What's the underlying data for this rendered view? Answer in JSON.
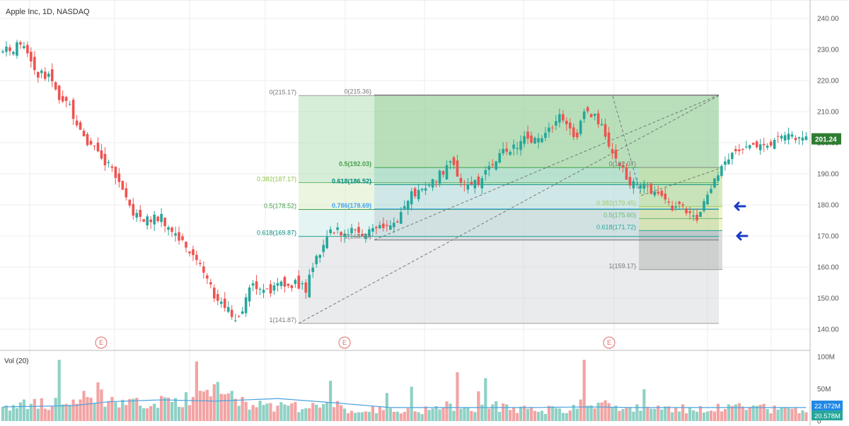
{
  "chart_title": "Apple Inc, 1D, NASDAQ",
  "volume_label": "Vol (20)",
  "colors": {
    "up": "#26a69a",
    "down": "#ef5350",
    "vol_up": "#8fd1c5",
    "vol_down": "#f3a3a3",
    "ma": "#4aa3df",
    "grid": "#eeeeee",
    "arrow": "#1a3cc7"
  },
  "price_axis": {
    "ticks": [
      "240.00",
      "230.00",
      "220.00",
      "210.00",
      "200.00",
      "190.00",
      "180.00",
      "170.00",
      "160.00",
      "150.00",
      "140.00"
    ],
    "last_price": "201.24"
  },
  "volume_axis": {
    "ticks": [
      "100M",
      "50M",
      "0"
    ],
    "ma_label": "22.672M",
    "vol_label": "20.578M"
  },
  "earnings_marker": "E",
  "fib_left": [
    {
      "label": "0(215.17)",
      "price": 215.17
    },
    {
      "label": "0.382(187.17)",
      "price": 187.17
    },
    {
      "label": "0.5(178.52)",
      "price": 178.52
    },
    {
      "label": "0.618(169.87)",
      "price": 169.87
    },
    {
      "label": "1(141.87)",
      "price": 141.87
    }
  ],
  "fib_mid": [
    {
      "label": "0(215.36)",
      "price": 215.36
    },
    {
      "label": "0.5(192.03)",
      "price": 192.03
    },
    {
      "label": "0.618(186.52)",
      "price": 186.52
    },
    {
      "label": "0.786(178.69)",
      "price": 178.69
    },
    {
      "label": "1(168.70)",
      "price": 168.7
    }
  ],
  "fib_right": [
    {
      "label": "0(192.07)",
      "price": 192.07
    },
    {
      "label": "0.382(179.45)",
      "price": 179.45
    },
    {
      "label": "0.5(175.60)",
      "price": 175.6
    },
    {
      "label": "0.618(171.72)",
      "price": 171.72
    },
    {
      "label": "1(159.17)",
      "price": 159.17
    }
  ],
  "chart_data": {
    "type": "candlestick",
    "title": "Apple Inc, 1D, NASDAQ",
    "ylim": [
      137,
      243
    ],
    "volume_ylim": [
      0,
      105
    ],
    "price_path": [
      [
        0,
        229
      ],
      [
        6,
        232
      ],
      [
        10,
        222
      ],
      [
        14,
        221
      ],
      [
        17,
        212
      ],
      [
        19,
        213
      ],
      [
        21,
        205
      ],
      [
        25,
        199
      ],
      [
        31,
        191
      ],
      [
        35,
        181
      ],
      [
        39,
        175
      ],
      [
        45,
        176
      ],
      [
        50,
        169
      ],
      [
        55,
        163
      ],
      [
        60,
        151
      ],
      [
        64,
        146
      ],
      [
        67,
        143
      ],
      [
        70,
        154
      ],
      [
        76,
        153
      ],
      [
        83,
        155
      ],
      [
        86,
        153
      ],
      [
        89,
        163
      ],
      [
        93,
        172
      ],
      [
        100,
        171
      ],
      [
        108,
        173
      ],
      [
        112,
        174
      ],
      [
        116,
        183
      ],
      [
        122,
        187
      ],
      [
        127,
        194
      ],
      [
        130,
        188
      ],
      [
        135,
        187
      ],
      [
        140,
        195
      ],
      [
        148,
        201
      ],
      [
        152,
        201
      ],
      [
        158,
        208
      ],
      [
        163,
        201
      ],
      [
        165,
        211
      ],
      [
        169,
        207
      ],
      [
        173,
        198
      ],
      [
        178,
        187
      ],
      [
        186,
        184
      ],
      [
        189,
        180
      ],
      [
        194,
        178
      ],
      [
        197,
        174
      ],
      [
        201,
        186
      ],
      [
        206,
        195
      ],
      [
        212,
        199
      ],
      [
        216,
        200
      ],
      [
        220,
        201
      ],
      [
        225,
        202
      ],
      [
        228,
        201
      ]
    ],
    "volume_path": [
      [
        0,
        22
      ],
      [
        10,
        28
      ],
      [
        20,
        30
      ],
      [
        28,
        45
      ],
      [
        30,
        28
      ],
      [
        40,
        26
      ],
      [
        50,
        30
      ],
      [
        55,
        40
      ],
      [
        60,
        42
      ],
      [
        64,
        48
      ],
      [
        70,
        26
      ],
      [
        85,
        22
      ],
      [
        90,
        28
      ],
      [
        100,
        18
      ],
      [
        110,
        18
      ],
      [
        120,
        17
      ],
      [
        128,
        25
      ],
      [
        135,
        21
      ],
      [
        140,
        24
      ],
      [
        150,
        18
      ],
      [
        160,
        17
      ],
      [
        166,
        33
      ],
      [
        170,
        27
      ],
      [
        180,
        20
      ],
      [
        190,
        18
      ],
      [
        200,
        21
      ],
      [
        210,
        20
      ],
      [
        220,
        19
      ],
      [
        228,
        20
      ]
    ],
    "volume_ma_path": [
      [
        0,
        22
      ],
      [
        20,
        24
      ],
      [
        30,
        30
      ],
      [
        45,
        33
      ],
      [
        60,
        31
      ],
      [
        78,
        35
      ],
      [
        95,
        28
      ],
      [
        110,
        21
      ],
      [
        130,
        21
      ],
      [
        150,
        21
      ],
      [
        166,
        22
      ],
      [
        180,
        21
      ],
      [
        200,
        21
      ],
      [
        228,
        21
      ]
    ]
  }
}
